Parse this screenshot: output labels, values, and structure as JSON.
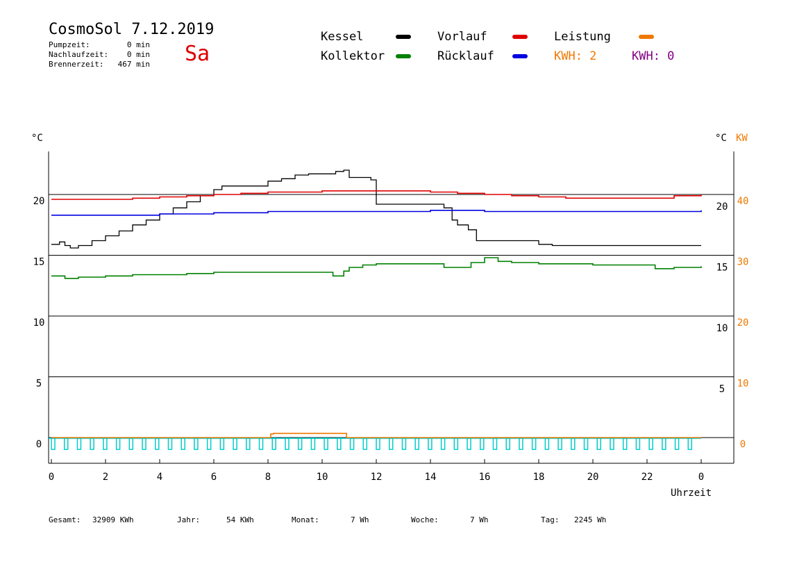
{
  "header": {
    "title": "CosmoSol 7.12.2019",
    "day": "Sa",
    "pumpzeit_label": "Pumpzeit:",
    "pumpzeit_value": "0 min",
    "nachlaufzeit_label": "Nachlaufzeit:",
    "nachlaufzeit_value": "0 min",
    "brennerzeit_label": "Brennerzeit:",
    "brennerzeit_value": "467 min"
  },
  "legend": {
    "kessel": "Kessel",
    "kollektor": "Kollektor",
    "vorlauf": "Vorlauf",
    "ruecklauf": "Rücklauf",
    "leistung": "Leistung",
    "kwh_orange": "KWH: 2",
    "kwh_purple": "KWH: 0"
  },
  "colors": {
    "kessel": "#000000",
    "kollektor": "#008000",
    "vorlauf": "#e00000",
    "ruecklauf": "#0000e0",
    "leistung": "#f07800",
    "kwh_purple": "#800080",
    "pump": "#00cccc",
    "day": "#dd0000"
  },
  "axes": {
    "left_unit": "°C",
    "right_unit": "°C",
    "right_unit2": "KW",
    "xlabel": "Uhrzeit"
  },
  "footer": {
    "gesamt_label": "Gesamt:",
    "gesamt_value": "32909 KWh",
    "jahr_label": "Jahr:",
    "jahr_value": "54 KWh",
    "monat_label": "Monat:",
    "monat_value": "7 Wh",
    "woche_label": "Woche:",
    "woche_value": "7 Wh",
    "tag_label": "Tag:",
    "tag_value": "2245 Wh"
  },
  "chart_data": {
    "type": "line",
    "xlabel": "Uhrzeit",
    "ylabel": "°C",
    "xlim": [
      0,
      24
    ],
    "ylim": [
      -1.5,
      24
    ],
    "x_ticks": [
      "0",
      "2",
      "4",
      "6",
      "8",
      "10",
      "12",
      "14",
      "16",
      "18",
      "20",
      "22",
      "0"
    ],
    "y_left_ticks": [
      "0",
      "5",
      "10",
      "15",
      "20"
    ],
    "y_right_temp_ticks": [
      "5",
      "10",
      "15",
      "20"
    ],
    "y_right_kw_ticks": [
      "0",
      "10",
      "20",
      "30",
      "40"
    ],
    "grid": "horizontal",
    "series": [
      {
        "name": "Kessel",
        "axis": "left",
        "x": [
          0,
          0.3,
          0.5,
          0.7,
          1,
          1.5,
          2,
          2.5,
          3,
          3.5,
          4,
          4.5,
          5,
          5.5,
          6,
          6.3,
          7,
          8,
          8.5,
          9,
          9.5,
          10,
          10.5,
          10.8,
          11,
          11.5,
          11.8,
          12,
          13,
          14,
          14.5,
          14.8,
          15,
          15.4,
          15.7,
          17.5,
          18,
          18.5,
          20,
          22,
          24
        ],
        "values": [
          15.9,
          16.1,
          15.8,
          15.6,
          15.8,
          16.2,
          16.6,
          17.0,
          17.5,
          17.9,
          18.4,
          18.9,
          19.4,
          19.9,
          20.4,
          20.7,
          20.7,
          21.1,
          21.3,
          21.6,
          21.7,
          21.7,
          21.9,
          22.0,
          21.4,
          21.4,
          21.2,
          19.2,
          19.2,
          19.2,
          18.9,
          17.9,
          17.5,
          17.1,
          16.2,
          16.2,
          15.9,
          15.8,
          15.8,
          15.8,
          15.8
        ]
      },
      {
        "name": "Vorlauf",
        "axis": "left",
        "x": [
          0,
          2,
          3,
          4,
          5,
          6,
          7,
          8,
          9,
          10,
          11,
          12,
          13,
          14,
          15,
          16,
          17,
          18,
          19,
          20,
          21,
          22,
          23,
          24
        ],
        "values": [
          19.6,
          19.6,
          19.7,
          19.8,
          19.9,
          20.0,
          20.1,
          20.2,
          20.2,
          20.3,
          20.3,
          20.3,
          20.3,
          20.2,
          20.1,
          20.0,
          19.9,
          19.8,
          19.7,
          19.7,
          19.7,
          19.7,
          19.9,
          20.0
        ]
      },
      {
        "name": "Rücklauf",
        "axis": "left",
        "x": [
          0,
          2,
          4,
          6,
          8,
          10,
          12,
          14,
          16,
          18,
          20,
          22,
          24
        ],
        "values": [
          18.3,
          18.3,
          18.4,
          18.5,
          18.6,
          18.6,
          18.6,
          18.7,
          18.6,
          18.6,
          18.6,
          18.6,
          18.7
        ]
      },
      {
        "name": "Kollektor",
        "axis": "left",
        "x": [
          0,
          0.5,
          1,
          2,
          3,
          4,
          5,
          6,
          7,
          8,
          9,
          10,
          10.4,
          10.8,
          11,
          11.5,
          12,
          13,
          14,
          14.5,
          15,
          15.5,
          16,
          16.5,
          17,
          18,
          19,
          20,
          21,
          22,
          22.3,
          22.5,
          23,
          24
        ],
        "values": [
          13.3,
          13.1,
          13.2,
          13.3,
          13.4,
          13.4,
          13.5,
          13.6,
          13.6,
          13.6,
          13.6,
          13.6,
          13.3,
          13.7,
          14.0,
          14.2,
          14.3,
          14.3,
          14.3,
          14.0,
          14.0,
          14.4,
          14.8,
          14.5,
          14.4,
          14.3,
          14.3,
          14.2,
          14.2,
          14.2,
          13.9,
          13.9,
          14.0,
          14.1
        ]
      },
      {
        "name": "Leistung",
        "axis": "right_kw",
        "x": [
          0,
          7.9,
          8.0,
          8.1,
          8.2,
          10.8,
          10.9,
          11,
          24
        ],
        "values": [
          0,
          0,
          0,
          0.6,
          0.7,
          0.7,
          0,
          0,
          0
        ]
      }
    ]
  }
}
